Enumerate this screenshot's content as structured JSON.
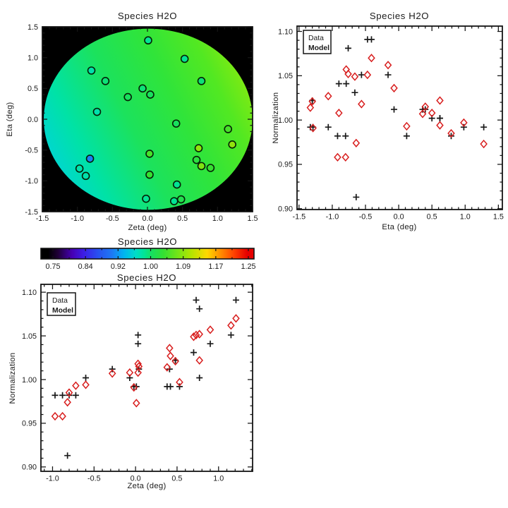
{
  "figure": {
    "background": "#ffffff",
    "species": "H2O"
  },
  "legend": {
    "data_label": "Data",
    "model_label": "Model"
  },
  "colors": {
    "frame": "#141414",
    "text": "#1b1b1b",
    "marker_data": "#1a1a1a",
    "marker_model": "#d81e1e",
    "legend_model_text": "#e01010",
    "map_background": "#000000",
    "circle_outline": "#062006"
  },
  "colormap": {
    "domain": [
      0.75,
      1.25
    ],
    "stops": [
      [
        0.0,
        "#000000"
      ],
      [
        0.05,
        "#200038"
      ],
      [
        0.12,
        "#4600b4"
      ],
      [
        0.18,
        "#3c1ee6"
      ],
      [
        0.25,
        "#2850f0"
      ],
      [
        0.32,
        "#1e78f5"
      ],
      [
        0.38,
        "#00b4f0"
      ],
      [
        0.44,
        "#00dcc8"
      ],
      [
        0.48,
        "#00e49a"
      ],
      [
        0.52,
        "#16e060"
      ],
      [
        0.58,
        "#34e032"
      ],
      [
        0.66,
        "#7ce414"
      ],
      [
        0.72,
        "#b4e400"
      ],
      [
        0.8,
        "#ffd800"
      ],
      [
        0.86,
        "#ff9600"
      ],
      [
        0.93,
        "#ff4600"
      ],
      [
        1.0,
        "#e60000"
      ]
    ]
  },
  "disk_gradient": {
    "stops": [
      [
        0.0,
        "#00d4d8"
      ],
      [
        0.18,
        "#00e2a6"
      ],
      [
        0.42,
        "#1ce25c"
      ],
      [
        0.65,
        "#30e43a"
      ],
      [
        0.85,
        "#52e822"
      ],
      [
        1.0,
        "#86ea10"
      ]
    ]
  },
  "chart_data": {
    "type": "scatter",
    "points": [
      {
        "zeta": 0.01,
        "eta": 1.28,
        "data": 0.992,
        "model": 0.973
      },
      {
        "zeta": 0.53,
        "eta": 0.98,
        "data": 0.992,
        "model": 0.997
      },
      {
        "zeta": -0.8,
        "eta": 0.79,
        "data": 0.982,
        "model": 0.985
      },
      {
        "zeta": -0.6,
        "eta": 0.62,
        "data": 1.002,
        "model": 0.994
      },
      {
        "zeta": -0.07,
        "eta": 0.5,
        "data": 1.002,
        "model": 1.008
      },
      {
        "zeta": 0.04,
        "eta": 0.4,
        "data": 1.012,
        "model": 1.015
      },
      {
        "zeta": -0.28,
        "eta": 0.36,
        "data": 1.012,
        "model": 1.007
      },
      {
        "zeta": 0.77,
        "eta": 0.62,
        "data": 1.002,
        "model": 1.022
      },
      {
        "zeta": -0.72,
        "eta": 0.12,
        "data": 0.982,
        "model": 0.993
      },
      {
        "zeta": 0.41,
        "eta": -0.07,
        "data": 1.012,
        "model": 1.036
      },
      {
        "zeta": 1.15,
        "eta": -0.16,
        "data": 1.051,
        "model": 1.062
      },
      {
        "zeta": 1.21,
        "eta": -0.41,
        "data": 1.091,
        "model": 1.07
      },
      {
        "zeta": 0.73,
        "eta": -0.47,
        "data": 1.091,
        "model": 1.051
      },
      {
        "zeta": 0.03,
        "eta": -0.56,
        "data": 1.051,
        "model": 1.018
      },
      {
        "zeta": -0.82,
        "eta": -0.64,
        "data": 0.913,
        "model": 0.974
      },
      {
        "zeta": 0.7,
        "eta": -0.66,
        "data": 1.031,
        "model": 1.049
      },
      {
        "zeta": -0.97,
        "eta": -0.8,
        "data": 0.982,
        "model": 0.958
      },
      {
        "zeta": 0.77,
        "eta": -0.76,
        "data": 1.081,
        "model": 1.052
      },
      {
        "zeta": 0.9,
        "eta": -0.79,
        "data": 1.041,
        "model": 1.057
      },
      {
        "zeta": -0.88,
        "eta": -0.92,
        "data": 0.982,
        "model": 0.958
      },
      {
        "zeta": 0.03,
        "eta": -0.9,
        "data": 1.041,
        "model": 1.008
      },
      {
        "zeta": 0.42,
        "eta": -1.06,
        "data": 0.992,
        "model": 1.027
      },
      {
        "zeta": -0.02,
        "eta": -1.29,
        "data": 0.992,
        "model": 0.991
      },
      {
        "zeta": 0.38,
        "eta": -1.33,
        "data": 0.992,
        "model": 1.014
      },
      {
        "zeta": 0.48,
        "eta": -1.3,
        "data": 1.022,
        "model": 1.021
      }
    ],
    "charts": [
      {
        "id": "map",
        "type": "scatter",
        "title": "Species H2O",
        "xlabel": "Zeta (deg)",
        "ylabel": "Eta (deg)",
        "xlim": [
          -1.5,
          1.5
        ],
        "ylim": [
          -1.5,
          1.5
        ],
        "xticks": [
          -1.5,
          -1.0,
          -0.5,
          0.0,
          0.5,
          1.0,
          1.5
        ],
        "xtick_labels": [
          "-1.5",
          "-1.0",
          "-0.5",
          "0.0",
          "0.5",
          "1.0",
          "1.5"
        ],
        "yticks": [
          -1.5,
          -1.0,
          -0.5,
          0.0,
          0.5,
          1.0,
          1.5
        ],
        "ytick_labels": [
          "-1.5",
          "-1.0",
          "-0.5",
          "0.0",
          "0.5",
          "1.0",
          "1.5"
        ],
        "xminor": 0.1,
        "yminor": 0.1,
        "x_field": "zeta",
        "y_field": "eta",
        "color_field": "data",
        "disk": {
          "center_zeta": 0.01,
          "center_eta": 0.0,
          "rx": 1.49,
          "ry": 1.47
        }
      },
      {
        "id": "colorbar",
        "type": "colorbar",
        "title": "Species H2O",
        "tick_labels": [
          "0.75",
          "0.84",
          "0.92",
          "1.00",
          "1.09",
          "1.17",
          "1.25"
        ]
      },
      {
        "id": "eta_scatter",
        "type": "scatter",
        "title": "Species H2O",
        "xlabel": "Eta (deg)",
        "ylabel": "Normalization",
        "xlim": [
          -1.53,
          1.56
        ],
        "ylim": [
          0.899,
          1.106
        ],
        "xticks": [
          -1.5,
          -1.0,
          -0.5,
          0.0,
          0.5,
          1.0,
          1.5
        ],
        "xtick_labels": [
          "-1.5",
          "-1.0",
          "-0.5",
          "0.0",
          "0.5",
          "1.0",
          "1.5"
        ],
        "yticks": [
          0.9,
          0.95,
          1.0,
          1.05,
          1.1
        ],
        "ytick_labels": [
          "0.90",
          "0.95",
          "1.00",
          "1.05",
          "1.10"
        ],
        "xminor": 0.1,
        "yminor": 0.01,
        "x_field": "eta",
        "series": [
          {
            "name": "Data",
            "field": "data",
            "marker": "plus"
          },
          {
            "name": "Model",
            "field": "model",
            "marker": "diamond"
          }
        ]
      },
      {
        "id": "zeta_scatter",
        "type": "scatter",
        "title": "Species H2O",
        "xlabel": "Zeta (deg)",
        "ylabel": "Normalization",
        "xlim": [
          -1.14,
          1.41
        ],
        "ylim": [
          0.895,
          1.109
        ],
        "xticks": [
          -1.0,
          -0.5,
          0.0,
          0.5,
          1.0
        ],
        "xtick_labels": [
          "-1.0",
          "-0.5",
          "0.0",
          "0.5",
          "1.0"
        ],
        "yticks": [
          0.9,
          0.95,
          1.0,
          1.05,
          1.1
        ],
        "ytick_labels": [
          "0.90",
          "0.95",
          "1.00",
          "1.05",
          "1.10"
        ],
        "xminor": 0.1,
        "yminor": 0.01,
        "x_field": "zeta",
        "series": [
          {
            "name": "Data",
            "field": "data",
            "marker": "plus"
          },
          {
            "name": "Model",
            "field": "model",
            "marker": "diamond"
          }
        ]
      }
    ]
  }
}
